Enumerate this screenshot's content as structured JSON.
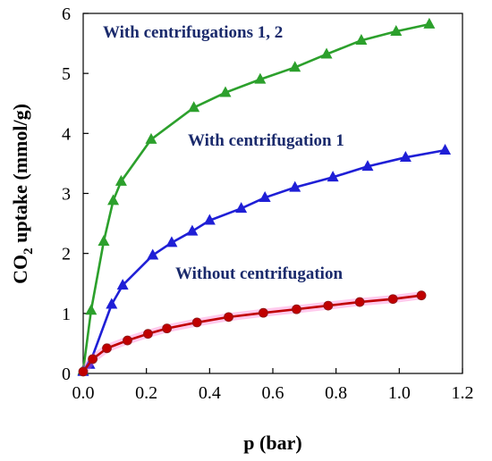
{
  "chart_data": {
    "type": "line",
    "xlabel": "p (bar)",
    "ylabel_main": "CO",
    "ylabel_sub": "2",
    "ylabel_rest": " uptake (mmol/g)",
    "xlim": [
      0,
      1.2
    ],
    "ylim": [
      0,
      6
    ],
    "xticks": [
      0,
      0.2,
      0.4,
      0.6,
      0.8,
      1.0,
      1.2
    ],
    "xtick_labels": [
      "0.0",
      "0.2",
      "0.4",
      "0.6",
      "0.8",
      "1.0",
      "1.2"
    ],
    "yticks": [
      0,
      1,
      2,
      3,
      4,
      5,
      6
    ],
    "ytick_labels": [
      "0",
      "1",
      "2",
      "3",
      "4",
      "5",
      "6"
    ],
    "grid": false,
    "series": [
      {
        "name": "With centrifugations 1, 2",
        "color": "#2ca02c",
        "marker": "triangle",
        "x": [
          0.0,
          0.025,
          0.065,
          0.095,
          0.12,
          0.215,
          0.35,
          0.45,
          0.56,
          0.67,
          0.77,
          0.88,
          0.99,
          1.095
        ],
        "y": [
          0.05,
          1.05,
          2.2,
          2.88,
          3.2,
          3.9,
          4.43,
          4.68,
          4.9,
          5.1,
          5.32,
          5.55,
          5.7,
          5.82
        ]
      },
      {
        "name": "With centrifugation 1",
        "color": "#1f1fd6",
        "marker": "triangle",
        "x": [
          0.0,
          0.02,
          0.09,
          0.125,
          0.22,
          0.28,
          0.345,
          0.4,
          0.5,
          0.575,
          0.67,
          0.79,
          0.9,
          1.02,
          1.145
        ],
        "y": [
          0.03,
          0.15,
          1.15,
          1.47,
          1.97,
          2.18,
          2.37,
          2.55,
          2.75,
          2.93,
          3.1,
          3.27,
          3.45,
          3.6,
          3.72
        ]
      },
      {
        "name": "Without centrifugation",
        "color": "#c00000",
        "marker": "circle",
        "x": [
          0.0,
          0.03,
          0.075,
          0.14,
          0.205,
          0.265,
          0.36,
          0.46,
          0.57,
          0.675,
          0.775,
          0.875,
          0.98,
          1.07
        ],
        "y": [
          0.03,
          0.24,
          0.42,
          0.55,
          0.66,
          0.75,
          0.85,
          0.94,
          1.01,
          1.07,
          1.13,
          1.19,
          1.24,
          1.3
        ]
      }
    ]
  }
}
